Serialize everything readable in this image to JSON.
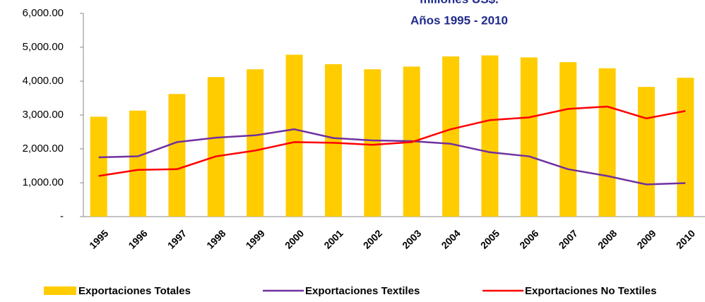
{
  "chart_data": {
    "type": "bar_line",
    "title": "millones US$.",
    "subtitle": "Años 1995 - 2010",
    "categories": [
      "1995",
      "1996",
      "1997",
      "1998",
      "1999",
      "2000",
      "2001",
      "2002",
      "2003",
      "2004",
      "2005",
      "2006",
      "2007",
      "2008",
      "2009",
      "2010"
    ],
    "series": [
      {
        "name": "Exportaciones Totales",
        "color": "#ffcc00",
        "kind": "bar",
        "values": [
          2950,
          3130,
          3620,
          4120,
          4350,
          4780,
          4500,
          4350,
          4430,
          4730,
          4760,
          4700,
          4560,
          4380,
          3830,
          4100
        ]
      },
      {
        "name": "Exportaciones Textiles",
        "color": "#7030a0",
        "kind": "line",
        "values": [
          1750,
          1780,
          2200,
          2330,
          2400,
          2580,
          2320,
          2250,
          2230,
          2150,
          1900,
          1780,
          1400,
          1200,
          950,
          990
        ]
      },
      {
        "name": "Exportaciones No Textiles",
        "color": "#ff0000",
        "kind": "line",
        "values": [
          1200,
          1380,
          1400,
          1780,
          1950,
          2200,
          2180,
          2120,
          2200,
          2580,
          2850,
          2930,
          3180,
          3250,
          2900,
          3120
        ]
      }
    ],
    "ylim": [
      0,
      6000
    ],
    "yticks": [
      {
        "value": 0,
        "label": "-"
      },
      {
        "value": 1000,
        "label": "1,000.00"
      },
      {
        "value": 2000,
        "label": "2,000.00"
      },
      {
        "value": 3000,
        "label": "3,000.00"
      },
      {
        "value": 4000,
        "label": "4,000.00"
      },
      {
        "value": 5000,
        "label": "5,000.00"
      },
      {
        "value": 6000,
        "label": "6,000.00"
      }
    ],
    "legend": "bottom"
  }
}
